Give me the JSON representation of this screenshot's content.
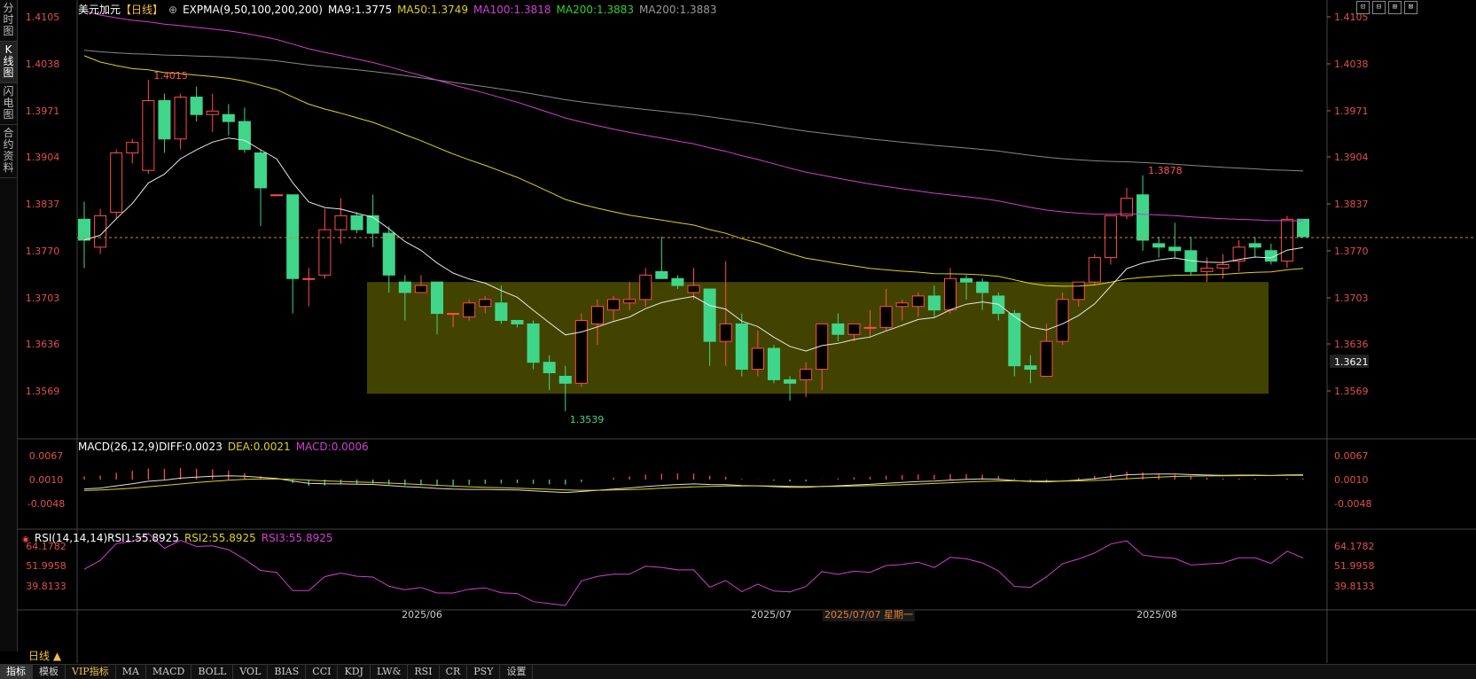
{
  "left_tabs": [
    {
      "label": "分时图",
      "active": false
    },
    {
      "label": "K线图",
      "active": true
    },
    {
      "label": "闪电图",
      "active": false
    },
    {
      "label": "合约资料",
      "active": false
    }
  ],
  "main_legend": {
    "symbol": "美元加元",
    "period": "【日线】",
    "indicator": "EXPMA(9,50,100,200,200)",
    "ma9": "MA9:1.3775",
    "ma50": "MA50:1.3749",
    "ma100": "MA100:1.3818",
    "ma200g": "MA200:1.3883",
    "ma200": "MA200:1.3883"
  },
  "macd_legend": {
    "name": "MACD(26,12,9)",
    "diff": "DIFF:0.0023",
    "dea": "DEA:0.0021",
    "macd": "MACD:0.0006"
  },
  "rsi_legend": {
    "name": "RSI(14,14,14)",
    "rsi1": "RSI1:55.8925",
    "rsi2": "RSI2:55.8925",
    "rsi3": "RSI3:55.8925"
  },
  "price_axis": [
    "1.4105",
    "1.4038",
    "1.3971",
    "1.3904",
    "1.3837",
    "1.3770",
    "1.3703",
    "1.3636",
    "1.3569"
  ],
  "current_price": "1.3621",
  "high_label": "1.4015",
  "low_label": "1.3539",
  "recent_high_label": "1.3878",
  "macd_axis": [
    "0.0067",
    "0.0010",
    "-0.0048"
  ],
  "rsi_axis": [
    "64.1782",
    "51.9958",
    "39.8133"
  ],
  "date_labels": [
    "2025/06",
    "2025/07",
    "2025/08"
  ],
  "cursor_date": "2025/07/07 星期一",
  "period_button": "日线 ▲",
  "window_buttons": [
    "⊡",
    "⊟",
    "⊞",
    "⊠"
  ],
  "bottom_tabs": [
    "指标",
    "模板",
    "VIP指标",
    "MA",
    "MACD",
    "BOLL",
    "VOL",
    "BIAS",
    "CCI",
    "KDJ",
    "LW&",
    "RSI",
    "CR",
    "PSY",
    "设置"
  ],
  "colors": {
    "up": "#ff4d4d",
    "down": "#3fd68a",
    "ma9": "#e8e8e8",
    "ma50": "#e0d020",
    "ma100": "#d040d0",
    "ma200": "#888888",
    "box": "#4a4a00"
  },
  "chart_data": {
    "type": "candlestick",
    "ylim": [
      1.352,
      1.412
    ],
    "candles": [
      {
        "o": 1.3815,
        "h": 1.384,
        "l": 1.3745,
        "c": 1.3785
      },
      {
        "o": 1.3775,
        "h": 1.383,
        "l": 1.3765,
        "c": 1.382
      },
      {
        "o": 1.3825,
        "h": 1.3915,
        "l": 1.3815,
        "c": 1.391
      },
      {
        "o": 1.391,
        "h": 1.393,
        "l": 1.3895,
        "c": 1.3925
      },
      {
        "o": 1.3885,
        "h": 1.4015,
        "l": 1.388,
        "c": 1.3985
      },
      {
        "o": 1.3985,
        "h": 1.3995,
        "l": 1.391,
        "c": 1.393
      },
      {
        "o": 1.393,
        "h": 1.3995,
        "l": 1.3915,
        "c": 1.399
      },
      {
        "o": 1.399,
        "h": 1.4005,
        "l": 1.3955,
        "c": 1.3965
      },
      {
        "o": 1.3965,
        "h": 1.3995,
        "l": 1.394,
        "c": 1.397
      },
      {
        "o": 1.3965,
        "h": 1.398,
        "l": 1.3935,
        "c": 1.3955
      },
      {
        "o": 1.3955,
        "h": 1.3975,
        "l": 1.391,
        "c": 1.3915
      },
      {
        "o": 1.391,
        "h": 1.3915,
        "l": 1.3805,
        "c": 1.386
      },
      {
        "o": 1.385,
        "h": 1.385,
        "l": 1.385,
        "c": 1.385
      },
      {
        "o": 1.385,
        "h": 1.385,
        "l": 1.368,
        "c": 1.373
      },
      {
        "o": 1.373,
        "h": 1.3745,
        "l": 1.369,
        "c": 1.373
      },
      {
        "o": 1.3735,
        "h": 1.383,
        "l": 1.373,
        "c": 1.38
      },
      {
        "o": 1.38,
        "h": 1.3845,
        "l": 1.378,
        "c": 1.382
      },
      {
        "o": 1.382,
        "h": 1.3825,
        "l": 1.3795,
        "c": 1.38
      },
      {
        "o": 1.382,
        "h": 1.385,
        "l": 1.3775,
        "c": 1.3795
      },
      {
        "o": 1.3795,
        "h": 1.3805,
        "l": 1.371,
        "c": 1.3735
      },
      {
        "o": 1.3725,
        "h": 1.3735,
        "l": 1.367,
        "c": 1.371
      },
      {
        "o": 1.371,
        "h": 1.3735,
        "l": 1.371,
        "c": 1.372
      },
      {
        "o": 1.3725,
        "h": 1.3725,
        "l": 1.365,
        "c": 1.368
      },
      {
        "o": 1.368,
        "h": 1.368,
        "l": 1.366,
        "c": 1.368
      },
      {
        "o": 1.3675,
        "h": 1.37,
        "l": 1.367,
        "c": 1.3695
      },
      {
        "o": 1.369,
        "h": 1.3705,
        "l": 1.368,
        "c": 1.37
      },
      {
        "o": 1.3695,
        "h": 1.372,
        "l": 1.3665,
        "c": 1.367
      },
      {
        "o": 1.367,
        "h": 1.367,
        "l": 1.366,
        "c": 1.3665
      },
      {
        "o": 1.3665,
        "h": 1.367,
        "l": 1.36,
        "c": 1.361
      },
      {
        "o": 1.361,
        "h": 1.362,
        "l": 1.357,
        "c": 1.3595
      },
      {
        "o": 1.359,
        "h": 1.3605,
        "l": 1.354,
        "c": 1.358
      },
      {
        "o": 1.358,
        "h": 1.368,
        "l": 1.3575,
        "c": 1.367
      },
      {
        "o": 1.3665,
        "h": 1.37,
        "l": 1.3635,
        "c": 1.369
      },
      {
        "o": 1.3685,
        "h": 1.3705,
        "l": 1.367,
        "c": 1.37
      },
      {
        "o": 1.3695,
        "h": 1.3725,
        "l": 1.3685,
        "c": 1.37
      },
      {
        "o": 1.37,
        "h": 1.3745,
        "l": 1.369,
        "c": 1.3735
      },
      {
        "o": 1.374,
        "h": 1.379,
        "l": 1.373,
        "c": 1.373
      },
      {
        "o": 1.373,
        "h": 1.3735,
        "l": 1.3715,
        "c": 1.372
      },
      {
        "o": 1.371,
        "h": 1.3745,
        "l": 1.37,
        "c": 1.372
      },
      {
        "o": 1.3715,
        "h": 1.3715,
        "l": 1.3605,
        "c": 1.364
      },
      {
        "o": 1.364,
        "h": 1.3755,
        "l": 1.3605,
        "c": 1.3665
      },
      {
        "o": 1.3665,
        "h": 1.368,
        "l": 1.359,
        "c": 1.36
      },
      {
        "o": 1.36,
        "h": 1.3655,
        "l": 1.359,
        "c": 1.363
      },
      {
        "o": 1.363,
        "h": 1.3635,
        "l": 1.358,
        "c": 1.3585
      },
      {
        "o": 1.3585,
        "h": 1.359,
        "l": 1.3555,
        "c": 1.358
      },
      {
        "o": 1.3585,
        "h": 1.361,
        "l": 1.356,
        "c": 1.36
      },
      {
        "o": 1.36,
        "h": 1.366,
        "l": 1.357,
        "c": 1.3665
      },
      {
        "o": 1.3665,
        "h": 1.368,
        "l": 1.364,
        "c": 1.365
      },
      {
        "o": 1.365,
        "h": 1.3665,
        "l": 1.364,
        "c": 1.3665
      },
      {
        "o": 1.366,
        "h": 1.3685,
        "l": 1.3645,
        "c": 1.366
      },
      {
        "o": 1.366,
        "h": 1.3715,
        "l": 1.3655,
        "c": 1.369
      },
      {
        "o": 1.369,
        "h": 1.37,
        "l": 1.367,
        "c": 1.3695
      },
      {
        "o": 1.369,
        "h": 1.371,
        "l": 1.3675,
        "c": 1.3705
      },
      {
        "o": 1.3705,
        "h": 1.372,
        "l": 1.3675,
        "c": 1.3685
      },
      {
        "o": 1.3685,
        "h": 1.3745,
        "l": 1.368,
        "c": 1.373
      },
      {
        "o": 1.373,
        "h": 1.3735,
        "l": 1.37,
        "c": 1.3725
      },
      {
        "o": 1.3725,
        "h": 1.373,
        "l": 1.3685,
        "c": 1.371
      },
      {
        "o": 1.3705,
        "h": 1.371,
        "l": 1.367,
        "c": 1.368
      },
      {
        "o": 1.368,
        "h": 1.3685,
        "l": 1.359,
        "c": 1.3605
      },
      {
        "o": 1.3605,
        "h": 1.362,
        "l": 1.358,
        "c": 1.36
      },
      {
        "o": 1.359,
        "h": 1.3665,
        "l": 1.359,
        "c": 1.364
      },
      {
        "o": 1.364,
        "h": 1.371,
        "l": 1.3635,
        "c": 1.37
      },
      {
        "o": 1.37,
        "h": 1.3725,
        "l": 1.369,
        "c": 1.3725
      },
      {
        "o": 1.3725,
        "h": 1.3765,
        "l": 1.372,
        "c": 1.376
      },
      {
        "o": 1.376,
        "h": 1.382,
        "l": 1.375,
        "c": 1.382
      },
      {
        "o": 1.382,
        "h": 1.386,
        "l": 1.3815,
        "c": 1.3845
      },
      {
        "o": 1.385,
        "h": 1.3878,
        "l": 1.377,
        "c": 1.3785
      },
      {
        "o": 1.378,
        "h": 1.379,
        "l": 1.376,
        "c": 1.3775
      },
      {
        "o": 1.3775,
        "h": 1.381,
        "l": 1.376,
        "c": 1.377
      },
      {
        "o": 1.377,
        "h": 1.379,
        "l": 1.3735,
        "c": 1.374
      },
      {
        "o": 1.374,
        "h": 1.376,
        "l": 1.3725,
        "c": 1.3745
      },
      {
        "o": 1.3745,
        "h": 1.3765,
        "l": 1.373,
        "c": 1.375
      },
      {
        "o": 1.3755,
        "h": 1.3785,
        "l": 1.374,
        "c": 1.3775
      },
      {
        "o": 1.378,
        "h": 1.379,
        "l": 1.376,
        "c": 1.3775
      },
      {
        "o": 1.377,
        "h": 1.378,
        "l": 1.375,
        "c": 1.3755
      },
      {
        "o": 1.3755,
        "h": 1.382,
        "l": 1.3745,
        "c": 1.3815
      },
      {
        "o": 1.3815,
        "h": 1.3815,
        "l": 1.379,
        "c": 1.379
      }
    ]
  }
}
